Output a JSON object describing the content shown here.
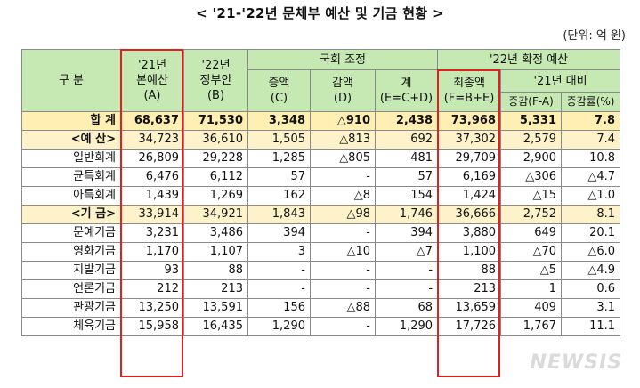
{
  "title": "< '21-'22년 문체부 예산 및 기금 현황 >",
  "unit": "(단위: 억 원)",
  "header": {
    "category": "구  분",
    "col21": "'21년",
    "col21_sub": "본예산",
    "col21_code": "(A)",
    "col22": "'22년",
    "col22_sub": "정부안",
    "col22_code": "(B)",
    "assembly": "국회 조정",
    "increase": "증액",
    "increase_code": "(C)",
    "decrease": "감액",
    "decrease_code": "(D)",
    "net": "계",
    "net_code": "(E=C+D)",
    "confirmed": "'22년 확정 예산",
    "final": "최종액",
    "final_code": "(F=B+E)",
    "vs21": "'21년 대비",
    "change": "증감(F-A)",
    "rate": "증감률(%)"
  },
  "rows": [
    {
      "label": "합 계",
      "a": "68,637",
      "b": "71,530",
      "c": "3,348",
      "d": "△910",
      "e": "2,438",
      "f": "73,968",
      "g": "5,331",
      "h": "7.8"
    },
    {
      "label": "<예 산>",
      "a": "34,723",
      "b": "36,610",
      "c": "1,505",
      "d": "△813",
      "e": "692",
      "f": "37,302",
      "g": "2,579",
      "h": "7.4"
    },
    {
      "label": "일반회계",
      "a": "26,809",
      "b": "29,228",
      "c": "1,285",
      "d": "△805",
      "e": "481",
      "f": "29,709",
      "g": "2,900",
      "h": "10.8"
    },
    {
      "label": "균특회계",
      "a": "6,476",
      "b": "6,112",
      "c": "57",
      "d": "-",
      "e": "57",
      "f": "6,169",
      "g": "△306",
      "h": "△4.7"
    },
    {
      "label": "아특회계",
      "a": "1,439",
      "b": "1,269",
      "c": "162",
      "d": "△8",
      "e": "154",
      "f": "1,424",
      "g": "△15",
      "h": "△1.0"
    },
    {
      "label": "<기 금>",
      "a": "33,914",
      "b": "34,921",
      "c": "1,843",
      "d": "△98",
      "e": "1,746",
      "f": "36,666",
      "g": "2,752",
      "h": "8.1"
    },
    {
      "label": "문예기금",
      "a": "3,231",
      "b": "3,486",
      "c": "394",
      "d": "-",
      "e": "394",
      "f": "3,880",
      "g": "649",
      "h": "20.1"
    },
    {
      "label": "영화기금",
      "a": "1,170",
      "b": "1,107",
      "c": "3",
      "d": "△10",
      "e": "△7",
      "f": "1,100",
      "g": "△70",
      "h": "△6.0"
    },
    {
      "label": "지발기금",
      "a": "93",
      "b": "88",
      "c": "-",
      "d": "-",
      "e": "-",
      "f": "88",
      "g": "△5",
      "h": "△4.9"
    },
    {
      "label": "언론기금",
      "a": "212",
      "b": "213",
      "c": "-",
      "d": "-",
      "e": "-",
      "f": "213",
      "g": "1",
      "h": "0.6"
    },
    {
      "label": "관광기금",
      "a": "13,250",
      "b": "13,591",
      "c": "156",
      "d": "△88",
      "e": "68",
      "f": "13,659",
      "g": "409",
      "h": "3.1"
    },
    {
      "label": "체육기금",
      "a": "15,958",
      "b": "16,435",
      "c": "1,290",
      "d": "-",
      "e": "1,290",
      "f": "17,726",
      "g": "1,767",
      "h": "11.1"
    }
  ],
  "watermark": "NEWSIS",
  "colors": {
    "header_bg": "#c6e9b4",
    "total_bg": "#ffefb3",
    "highlight_border": "#e02020"
  }
}
